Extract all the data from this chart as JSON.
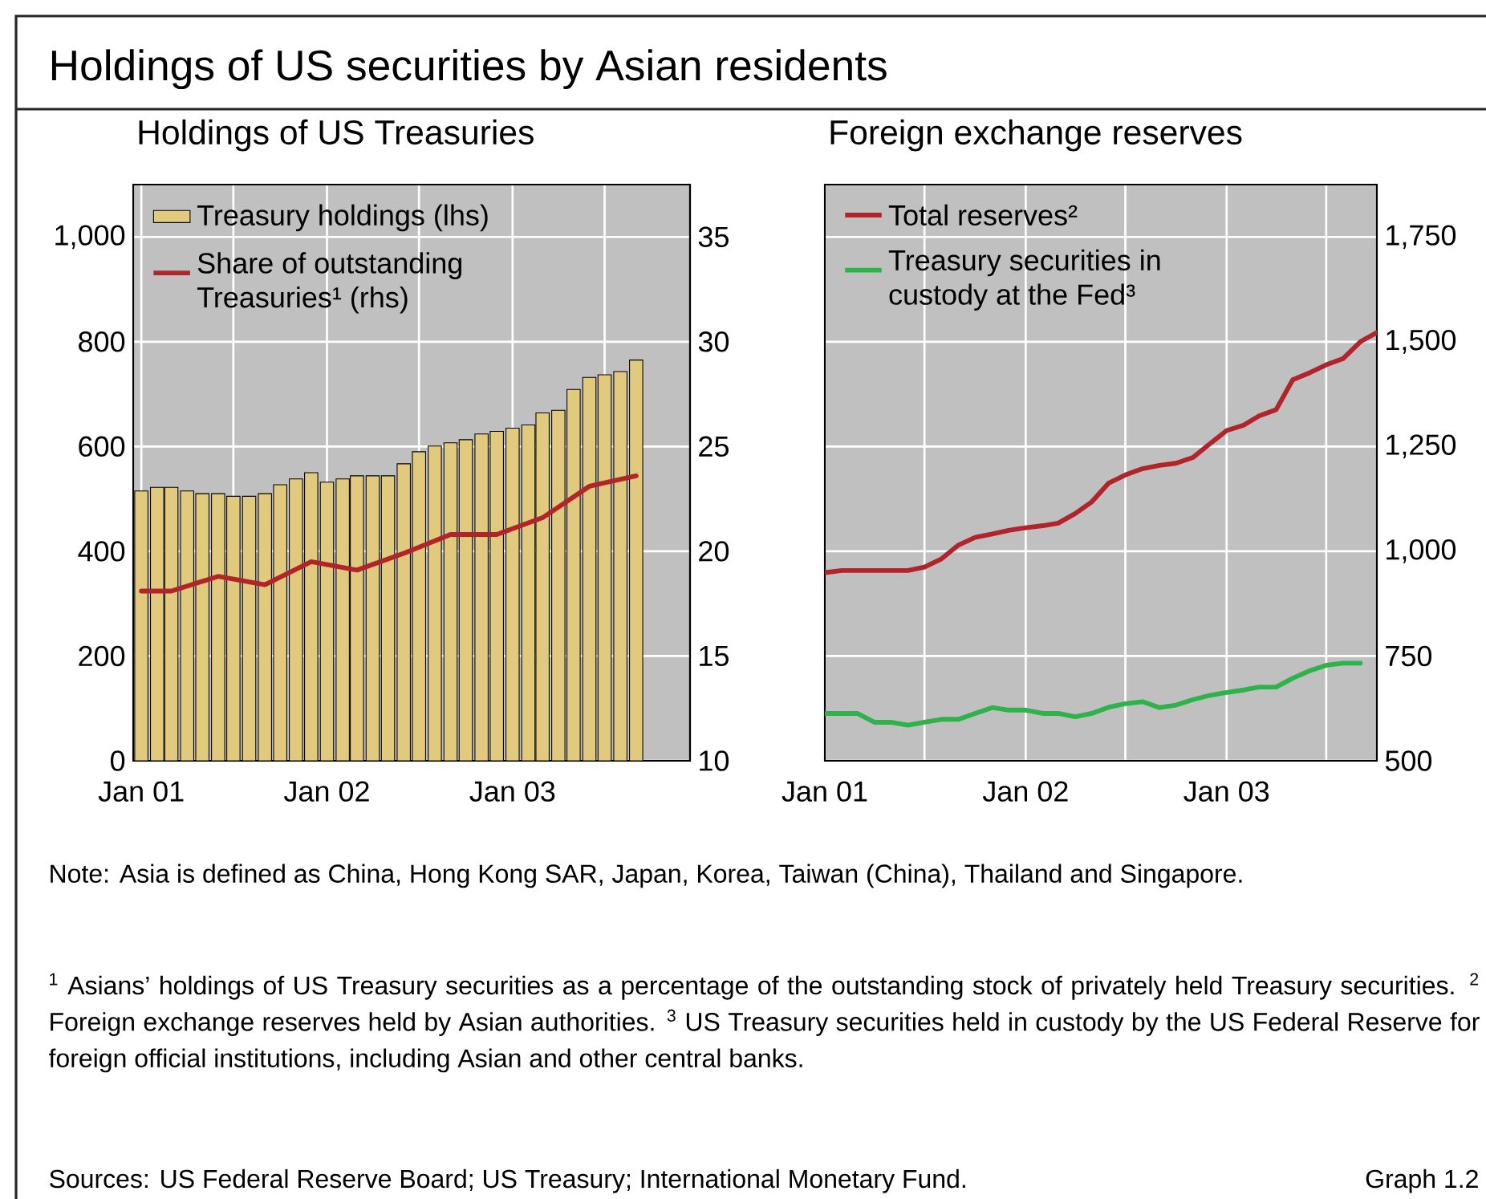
{
  "chart_data": [
    {
      "type": "other",
      "title": "Holdings of US securities by Asian residents",
      "annotations": [
        "Note: Asia is defined as China, Hong Kong SAR, Japan, Korea, Taiwan (China), Thailand and Singapore.",
        "$^{1}$ Asians’ holdings of US Treasury securities as a percentage of the outstanding stock of privately held Treasury securities. $^{2}$ Foreign exchange reserves held by Asian authorities. $^{3}$ US Treasury securities held in custody by the US Federal Reserve for foreign official institutions, including Asian and other central banks.",
        "Sources: US Federal Reserve Board; US Treasury; International Monetary Fund.",
        "Graph 1.2"
      ]
    },
    {
      "type": "bar",
      "title": "Holdings of US Treasuries",
      "x": [
        "2001-01",
        "2001-02",
        "2001-03",
        "2001-04",
        "2001-05",
        "2001-06",
        "2001-07",
        "2001-08",
        "2001-09",
        "2001-10",
        "2001-11",
        "2001-12",
        "2002-01",
        "2002-02",
        "2002-03",
        "2002-04",
        "2002-05",
        "2002-06",
        "2002-07",
        "2002-08",
        "2002-09",
        "2002-10",
        "2002-11",
        "2002-12",
        "2003-01",
        "2003-02",
        "2003-03",
        "2003-04",
        "2003-05",
        "2003-06",
        "2003-07",
        "2003-08",
        "2003-09"
      ],
      "series": [
        {
          "name": "Treasury holdings (lhs)",
          "type": "bar",
          "color": "#e1c97d",
          "values": [
            515,
            522,
            522,
            515,
            510,
            510,
            505,
            505,
            510,
            527,
            538,
            550,
            532,
            538,
            544,
            544,
            544,
            567,
            590,
            601,
            607,
            613,
            624,
            629,
            635,
            641,
            664,
            669,
            709,
            732,
            737,
            743,
            765
          ]
        },
        {
          "name": "Share of outstanding Treasuries¹ (rhs)",
          "type": "line",
          "axis": "y2",
          "color": "#b0242a",
          "x": [
            "2001-01",
            "2001-03",
            "2001-06",
            "2001-09",
            "2001-12",
            "2002-03",
            "2002-06",
            "2002-09",
            "2002-12",
            "2003-03",
            "2003-06",
            "2003-09"
          ],
          "values": [
            18.1,
            18.1,
            18.8,
            18.4,
            19.5,
            19.1,
            19.9,
            20.8,
            20.8,
            21.6,
            23.1,
            23.6
          ]
        }
      ],
      "xlim": [
        "2000-12-16",
        "2003-12-16"
      ],
      "xticks": [
        {
          "value": "2001-01",
          "label": "Jan 01"
        },
        {
          "value": "2001-07",
          "label": null
        },
        {
          "value": "2002-01",
          "label": "Jan 02"
        },
        {
          "value": "2002-07",
          "label": null
        },
        {
          "value": "2003-01",
          "label": "Jan 03"
        },
        {
          "value": "2003-07",
          "label": null
        }
      ],
      "ylim": [
        0,
        1100
      ],
      "yticks": [
        0,
        200,
        400,
        600,
        800,
        {
          "value": 1000,
          "label": "1,000"
        }
      ],
      "y2lim": [
        10,
        37.5
      ],
      "y2ticks": [
        10,
        15,
        20,
        25,
        30,
        35
      ],
      "grid": true,
      "legend": "top left"
    },
    {
      "type": "line",
      "title": "Foreign exchange reserves",
      "series": [
        {
          "name": "Total reserves²",
          "color": "#b0242a",
          "x": [
            "2001-01",
            "2001-02",
            "2001-03",
            "2001-04",
            "2001-05",
            "2001-06",
            "2001-07",
            "2001-08",
            "2001-09",
            "2001-10",
            "2001-11",
            "2001-12",
            "2002-01",
            "2002-02",
            "2002-03",
            "2002-04",
            "2002-05",
            "2002-06",
            "2002-07",
            "2002-08",
            "2002-09",
            "2002-10",
            "2002-11",
            "2002-12",
            "2003-01",
            "2003-02",
            "2003-03",
            "2003-04",
            "2003-05",
            "2003-06",
            "2003-07",
            "2003-08",
            "2003-09",
            "2003-10"
          ],
          "values": [
            949,
            954,
            954,
            954,
            954,
            954,
            962,
            982,
            1015,
            1033,
            1041,
            1050,
            1056,
            1061,
            1067,
            1090,
            1118,
            1163,
            1182,
            1197,
            1205,
            1210,
            1224,
            1256,
            1288,
            1301,
            1323,
            1338,
            1409,
            1426,
            1445,
            1460,
            1500,
            1522
          ]
        },
        {
          "name": "Treasury securities in custody at the Fed³",
          "color": "#2db34a",
          "x": [
            "2001-01",
            "2001-02",
            "2001-03",
            "2001-04",
            "2001-05",
            "2001-06",
            "2001-07",
            "2001-08",
            "2001-09",
            "2001-10",
            "2001-11",
            "2001-12",
            "2002-01",
            "2002-02",
            "2002-03",
            "2002-04",
            "2002-05",
            "2002-06",
            "2002-07",
            "2002-08",
            "2002-09",
            "2002-10",
            "2002-11",
            "2002-12",
            "2003-01",
            "2003-02",
            "2003-03",
            "2003-04",
            "2003-05",
            "2003-06",
            "2003-07",
            "2003-08",
            "2003-09"
          ],
          "values": [
            613,
            613,
            613,
            592,
            592,
            585,
            592,
            599,
            599,
            613,
            627,
            621,
            621,
            613,
            613,
            605,
            613,
            628,
            636,
            641,
            627,
            633,
            646,
            656,
            663,
            669,
            676,
            676,
            697,
            715,
            728,
            733,
            733
          ]
        }
      ],
      "xlim": [
        "2001-01",
        "2003-10"
      ],
      "xticks": [
        {
          "value": "2001-01",
          "label": "Jan 01"
        },
        {
          "value": "2001-07",
          "label": null
        },
        {
          "value": "2002-01",
          "label": "Jan 02"
        },
        {
          "value": "2002-07",
          "label": null
        },
        {
          "value": "2003-01",
          "label": "Jan 03"
        },
        {
          "value": "2003-07",
          "label": null
        }
      ],
      "ylim": [
        500,
        1875
      ],
      "yticks": [
        500,
        750,
        {
          "value": 1000,
          "label": "1,000"
        },
        {
          "value": 1250,
          "label": "1,250"
        },
        {
          "value": 1500,
          "label": "1,500"
        },
        {
          "value": 1750,
          "label": "1,750"
        }
      ],
      "grid": true,
      "legend": "top left"
    }
  ]
}
